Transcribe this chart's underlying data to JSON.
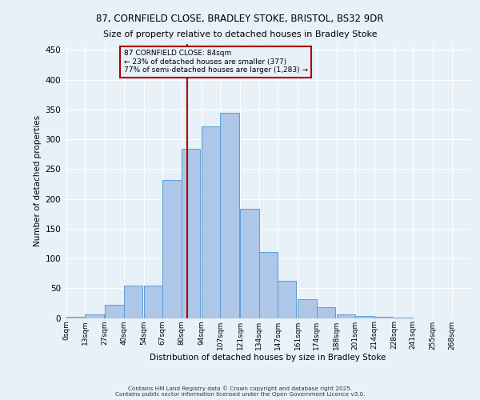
{
  "title_line1": "87, CORNFIELD CLOSE, BRADLEY STOKE, BRISTOL, BS32 9DR",
  "title_line2": "Size of property relative to detached houses in Bradley Stoke",
  "xlabel": "Distribution of detached houses by size in Bradley Stoke",
  "ylabel": "Number of detached properties",
  "annotation_title": "87 CORNFIELD CLOSE: 84sqm",
  "annotation_line2": "← 23% of detached houses are smaller (377)",
  "annotation_line3": "77% of semi-detached houses are larger (1,283) →",
  "footer_line1": "Contains HM Land Registry data © Crown copyright and database right 2025.",
  "footer_line2": "Contains public sector information licensed under the Open Government Licence v3.0.",
  "bar_labels": [
    "0sqm",
    "13sqm",
    "27sqm",
    "40sqm",
    "54sqm",
    "67sqm",
    "80sqm",
    "94sqm",
    "107sqm",
    "121sqm",
    "134sqm",
    "147sqm",
    "161sqm",
    "174sqm",
    "188sqm",
    "201sqm",
    "214sqm",
    "228sqm",
    "241sqm",
    "255sqm",
    "268sqm"
  ],
  "bar_values": [
    2,
    6,
    22,
    55,
    55,
    232,
    284,
    322,
    344,
    183,
    111,
    63,
    32,
    18,
    6,
    4,
    2,
    1,
    0,
    0,
    0
  ],
  "bar_color": "#aec6e8",
  "bar_edge_color": "#5a9fd4",
  "vline_x": 84,
  "vline_color": "#aa0000",
  "annotation_box_color": "#aa0000",
  "background_color": "#e8f0f8",
  "grid_color": "#ffffff",
  "ylim": [
    0,
    460
  ],
  "bin_starts": [
    0,
    13,
    27,
    40,
    54,
    67,
    80,
    94,
    107,
    121,
    134,
    147,
    161,
    174,
    188,
    201,
    214,
    228,
    241,
    255,
    268
  ],
  "bin_width": 13
}
